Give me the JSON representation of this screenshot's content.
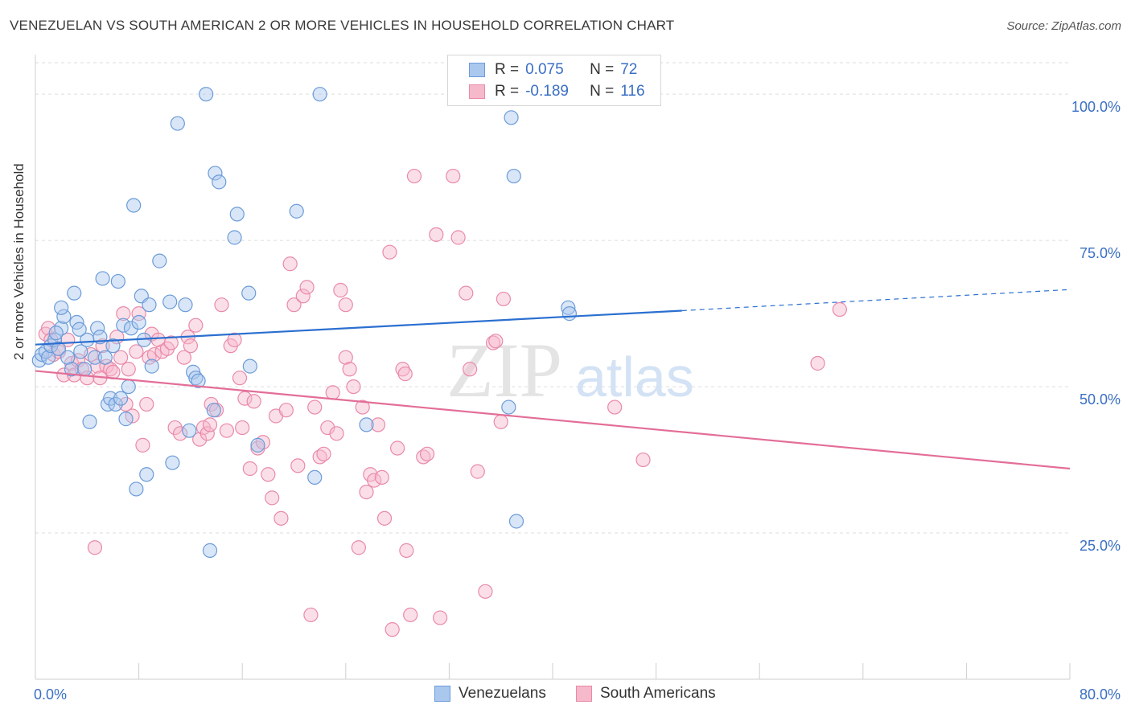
{
  "title": "VENEZUELAN VS SOUTH AMERICAN 2 OR MORE VEHICLES IN HOUSEHOLD CORRELATION CHART",
  "source": "Source: ZipAtlas.com",
  "watermark": {
    "zip": "ZIP",
    "atlas": "atlas"
  },
  "legend": {
    "r_label": "R =",
    "n_label": "N =",
    "rows": [
      {
        "r": "0.075",
        "n": "72"
      },
      {
        "r": "-0.189",
        "n": "116"
      }
    ]
  },
  "colors": {
    "blue_fill": "#aac8ee",
    "blue_stroke": "#6b9bd9",
    "blue_line": "#2b6fd0",
    "pink_fill": "#f6b8cb",
    "pink_stroke": "#e98aa8",
    "pink_line": "#e36e98",
    "axis_text": "#3a6fc4",
    "grid": "#dddddd"
  },
  "chart_data": {
    "type": "scatter",
    "title": "VENEZUELAN VS SOUTH AMERICAN 2 OR MORE VEHICLES IN HOUSEHOLD CORRELATION CHART",
    "xlabel": "",
    "ylabel": "2 or more Vehicles in Household",
    "xlim": [
      0,
      80
    ],
    "ylim": [
      0,
      105
    ],
    "x_tick_labels": [
      "0.0%",
      "80.0%"
    ],
    "y_tick_labels": [
      "25.0%",
      "50.0%",
      "75.0%",
      "100.0%"
    ],
    "y_ticks": [
      25,
      50,
      75,
      100
    ],
    "grid": true,
    "legend_position": "bottom",
    "series": [
      {
        "name": "Venezuelans",
        "r": 0.075,
        "n": 72,
        "trend": {
          "x0": 0,
          "y0": 57.2,
          "x1": 50,
          "y1": 63.0,
          "dashed_to_x": 80,
          "dashed_to_y": 66.6
        },
        "points": [
          [
            0.3,
            54.5
          ],
          [
            0.5,
            55.5
          ],
          [
            0.8,
            56
          ],
          [
            1.0,
            55
          ],
          [
            1.2,
            57
          ],
          [
            1.5,
            58
          ],
          [
            1.8,
            56.5
          ],
          [
            2.0,
            60
          ],
          [
            2.2,
            62
          ],
          [
            2.0,
            63.5
          ],
          [
            2.5,
            55
          ],
          [
            2.8,
            53
          ],
          [
            3.0,
            66
          ],
          [
            3.2,
            61
          ],
          [
            3.5,
            56
          ],
          [
            3.8,
            53
          ],
          [
            4.0,
            58
          ],
          [
            4.2,
            44
          ],
          [
            4.6,
            55
          ],
          [
            4.8,
            60
          ],
          [
            5.0,
            58.5
          ],
          [
            5.2,
            68.5
          ],
          [
            5.4,
            55
          ],
          [
            5.6,
            47
          ],
          [
            5.8,
            48
          ],
          [
            6.0,
            57
          ],
          [
            6.2,
            47
          ],
          [
            6.4,
            68
          ],
          [
            6.6,
            48
          ],
          [
            6.8,
            60.5
          ],
          [
            7.0,
            44.5
          ],
          [
            7.2,
            50
          ],
          [
            7.4,
            60
          ],
          [
            7.6,
            81
          ],
          [
            7.8,
            32.5
          ],
          [
            8.0,
            61
          ],
          [
            8.2,
            65.5
          ],
          [
            8.4,
            58
          ],
          [
            8.6,
            35
          ],
          [
            8.8,
            64
          ],
          [
            9.0,
            53.5
          ],
          [
            9.6,
            71.5
          ],
          [
            10.4,
            64.5
          ],
          [
            10.6,
            37
          ],
          [
            11.0,
            95
          ],
          [
            11.6,
            64
          ],
          [
            11.9,
            42.5
          ],
          [
            12.2,
            52.5
          ],
          [
            12.4,
            51.5
          ],
          [
            12.6,
            51
          ],
          [
            13.2,
            100
          ],
          [
            13.5,
            22
          ],
          [
            13.8,
            46
          ],
          [
            13.9,
            86.5
          ],
          [
            14.2,
            85
          ],
          [
            15.4,
            75.5
          ],
          [
            15.6,
            79.5
          ],
          [
            16.5,
            66
          ],
          [
            16.6,
            53.5
          ],
          [
            17.2,
            40
          ],
          [
            20.2,
            80
          ],
          [
            21.6,
            34.5
          ],
          [
            22.0,
            100
          ],
          [
            25.6,
            43.5
          ],
          [
            36.6,
            46.5
          ],
          [
            36.8,
            96
          ],
          [
            37.0,
            86
          ],
          [
            37.2,
            27
          ],
          [
            41.2,
            63.5
          ],
          [
            41.3,
            62.5
          ],
          [
            3.4,
            59.8
          ],
          [
            1.6,
            59.2
          ]
        ]
      },
      {
        "name": "South Americans",
        "r": -0.189,
        "n": 116,
        "trend": {
          "x0": 0,
          "y0": 52.7,
          "x1": 80,
          "y1": 36.0
        },
        "points": [
          [
            0.8,
            59
          ],
          [
            1.0,
            60
          ],
          [
            1.2,
            58
          ],
          [
            1.4,
            55.5
          ],
          [
            1.8,
            56
          ],
          [
            2.2,
            52
          ],
          [
            2.5,
            58
          ],
          [
            2.8,
            54
          ],
          [
            3.0,
            52
          ],
          [
            3.3,
            54.5
          ],
          [
            3.6,
            53
          ],
          [
            4.0,
            51.5
          ],
          [
            4.3,
            55.5
          ],
          [
            4.6,
            22.5
          ],
          [
            4.8,
            53.5
          ],
          [
            5.0,
            51.5
          ],
          [
            5.2,
            57
          ],
          [
            5.5,
            53.5
          ],
          [
            5.8,
            53
          ],
          [
            6.0,
            52.5
          ],
          [
            6.3,
            58.5
          ],
          [
            6.6,
            55
          ],
          [
            6.8,
            62.5
          ],
          [
            7.0,
            47
          ],
          [
            7.2,
            53
          ],
          [
            7.5,
            45
          ],
          [
            7.8,
            56
          ],
          [
            8.0,
            62.5
          ],
          [
            8.3,
            40
          ],
          [
            8.6,
            47
          ],
          [
            8.8,
            55
          ],
          [
            9.0,
            59
          ],
          [
            9.2,
            55.5
          ],
          [
            9.5,
            58
          ],
          [
            9.8,
            56
          ],
          [
            10.2,
            56.5
          ],
          [
            10.5,
            57.5
          ],
          [
            10.8,
            43
          ],
          [
            11.2,
            42
          ],
          [
            11.5,
            55
          ],
          [
            11.8,
            58.5
          ],
          [
            12.0,
            57
          ],
          [
            12.4,
            60.5
          ],
          [
            12.7,
            41
          ],
          [
            13.0,
            43
          ],
          [
            13.3,
            42
          ],
          [
            13.6,
            47
          ],
          [
            14.0,
            46
          ],
          [
            14.4,
            64
          ],
          [
            14.8,
            42.5
          ],
          [
            15.1,
            57
          ],
          [
            15.4,
            58
          ],
          [
            15.8,
            51.5
          ],
          [
            16.0,
            43
          ],
          [
            16.2,
            48
          ],
          [
            16.6,
            36
          ],
          [
            16.9,
            47.5
          ],
          [
            17.2,
            39.5
          ],
          [
            17.6,
            40.5
          ],
          [
            18.0,
            35
          ],
          [
            18.3,
            31
          ],
          [
            18.6,
            45
          ],
          [
            19.0,
            27.5
          ],
          [
            19.4,
            46
          ],
          [
            19.7,
            71
          ],
          [
            20.0,
            64
          ],
          [
            20.3,
            36.5
          ],
          [
            20.7,
            65.5
          ],
          [
            21.0,
            67
          ],
          [
            21.3,
            11
          ],
          [
            21.6,
            46.5
          ],
          [
            22.0,
            38
          ],
          [
            22.3,
            38.5
          ],
          [
            22.6,
            43
          ],
          [
            23.0,
            49
          ],
          [
            23.3,
            42
          ],
          [
            23.6,
            66.5
          ],
          [
            24.0,
            55
          ],
          [
            24.3,
            53
          ],
          [
            24.6,
            50
          ],
          [
            25.0,
            22.5
          ],
          [
            25.3,
            46.5
          ],
          [
            25.6,
            32
          ],
          [
            25.9,
            35
          ],
          [
            26.2,
            34
          ],
          [
            26.5,
            43.5
          ],
          [
            26.8,
            34.5
          ],
          [
            27.0,
            27.5
          ],
          [
            27.4,
            73
          ],
          [
            28.0,
            39.5
          ],
          [
            28.4,
            53
          ],
          [
            28.7,
            22
          ],
          [
            29.0,
            11
          ],
          [
            29.3,
            86
          ],
          [
            30.0,
            38
          ],
          [
            30.3,
            38.5
          ],
          [
            31.0,
            76
          ],
          [
            31.3,
            10.5
          ],
          [
            32.3,
            86
          ],
          [
            32.7,
            75.5
          ],
          [
            33.3,
            66
          ],
          [
            33.6,
            53
          ],
          [
            34.2,
            35.5
          ],
          [
            34.8,
            15
          ],
          [
            35.4,
            57.5
          ],
          [
            35.6,
            57.8
          ],
          [
            36.0,
            44
          ],
          [
            36.2,
            65
          ],
          [
            44.8,
            46.5
          ],
          [
            47.0,
            37.5
          ],
          [
            60.5,
            54
          ],
          [
            62.2,
            63.2
          ],
          [
            24.0,
            64
          ],
          [
            27.6,
            8.5
          ],
          [
            13.5,
            43.5
          ],
          [
            28.6,
            52.2
          ]
        ]
      }
    ]
  }
}
